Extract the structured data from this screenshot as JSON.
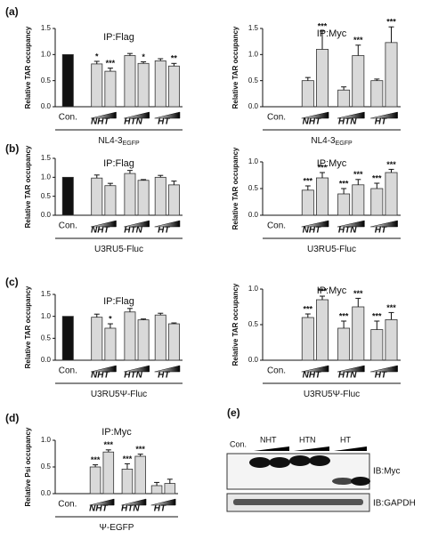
{
  "chart_data": [
    {
      "type": "bar",
      "panel": "(a)",
      "title": "IP:Flag",
      "ylabel": "Relative TAR occupancy",
      "xlabel": "NL4-3",
      "xlabel_sub": "EGFP",
      "ylim": [
        0,
        1.5
      ],
      "yticks": [
        {
          "value": 0,
          "label": "0.0"
        },
        0.5,
        {
          "value": 1,
          "label": "1.0"
        },
        {
          "value": 1.5,
          "label": "1.5"
        }
      ],
      "con_color": "#111111",
      "color": "#d9d9d9",
      "groups": [
        {
          "label": "Con.",
          "values": [
            1.0
          ],
          "errors": [
            null
          ],
          "annotations": [
            null
          ]
        },
        {
          "label": "NHT",
          "values": [
            0.82,
            0.68
          ],
          "errors": [
            0.05,
            0.06
          ],
          "annotations": [
            "*",
            "***"
          ]
        },
        {
          "label": "HTN",
          "values": [
            0.98,
            0.83
          ],
          "errors": [
            0.04,
            0.03
          ],
          "annotations": [
            null,
            "*"
          ]
        },
        {
          "label": "HT",
          "values": [
            0.88,
            0.78
          ],
          "errors": [
            0.04,
            0.05
          ],
          "annotations": [
            null,
            "**"
          ]
        }
      ]
    },
    {
      "type": "bar",
      "title": "IP:Myc",
      "ylabel": "Relative TAR occupancy",
      "xlabel": "NL4-3",
      "xlabel_sub": "EGFP",
      "ylim": [
        0,
        1.5
      ],
      "yticks": [
        {
          "value": 0,
          "label": "0.0"
        },
        0.5,
        {
          "value": 1,
          "label": "1.0"
        },
        {
          "value": 1.5,
          "label": "1.5"
        }
      ],
      "con_color": "#111111",
      "color": "#d9d9d9",
      "groups": [
        {
          "label": "Con.",
          "values": [
            null
          ],
          "errors": [
            null
          ],
          "annotations": [
            null
          ]
        },
        {
          "label": "NHT",
          "values": [
            0.5,
            1.1
          ],
          "errors": [
            0.06,
            0.35
          ],
          "annotations": [
            null,
            "***"
          ]
        },
        {
          "label": "HTN",
          "values": [
            0.32,
            0.98
          ],
          "errors": [
            0.06,
            0.2
          ],
          "annotations": [
            null,
            "***"
          ]
        },
        {
          "label": "HT",
          "values": [
            0.5,
            1.23
          ],
          "errors": [
            0.03,
            0.3
          ],
          "annotations": [
            null,
            "***"
          ]
        }
      ]
    },
    {
      "type": "bar",
      "panel": "(b)",
      "title": "IP:Flag",
      "ylabel": "Relative TAR occupancy",
      "xlabel": "U3RU5-Fluc",
      "ylim": [
        0,
        1.5
      ],
      "yticks": [
        {
          "value": 0,
          "label": "0.0"
        },
        0.5,
        {
          "value": 1,
          "label": "1.0"
        },
        {
          "value": 1.5,
          "label": "1.5"
        }
      ],
      "con_color": "#111111",
      "color": "#d9d9d9",
      "groups": [
        {
          "label": "Con.",
          "values": [
            1.0
          ],
          "errors": [
            null
          ],
          "annotations": [
            null
          ]
        },
        {
          "label": "NHT",
          "values": [
            0.98,
            0.78
          ],
          "errors": [
            0.08,
            0.06
          ],
          "annotations": [
            null,
            null
          ]
        },
        {
          "label": "HTN",
          "values": [
            1.1,
            0.92
          ],
          "errors": [
            0.08,
            0.02
          ],
          "annotations": [
            null,
            null
          ]
        },
        {
          "label": "HT",
          "values": [
            1.0,
            0.8
          ],
          "errors": [
            0.05,
            0.1
          ],
          "annotations": [
            null,
            null
          ]
        }
      ]
    },
    {
      "type": "bar",
      "title": "IP:Myc",
      "ylabel": "Relative TAR occupancy",
      "xlabel": "U3RU5-Fluc",
      "ylim": [
        0,
        1.0
      ],
      "yticks": [
        {
          "value": 0,
          "label": "0.0"
        },
        0.5,
        {
          "value": 1,
          "label": "1.0"
        }
      ],
      "con_color": "#111111",
      "color": "#d9d9d9",
      "groups": [
        {
          "label": "Con.",
          "values": [
            null
          ],
          "errors": [
            null
          ],
          "annotations": [
            null
          ]
        },
        {
          "label": "NHT",
          "values": [
            0.47,
            0.7
          ],
          "errors": [
            0.08,
            0.1
          ],
          "annotations": [
            "***",
            "***"
          ]
        },
        {
          "label": "HTN",
          "values": [
            0.4,
            0.57
          ],
          "errors": [
            0.1,
            0.1
          ],
          "annotations": [
            "***",
            "***"
          ]
        },
        {
          "label": "HT",
          "values": [
            0.5,
            0.8
          ],
          "errors": [
            0.1,
            0.06
          ],
          "annotations": [
            "***",
            "***"
          ]
        }
      ]
    },
    {
      "type": "bar",
      "panel": "(c)",
      "title": "IP:Flag",
      "ylabel": "Relative TAR occupancy",
      "xlabel": "U3RU5Ψ-Fluc",
      "ylim": [
        0,
        1.5
      ],
      "yticks": [
        {
          "value": 0,
          "label": "0.0"
        },
        0.5,
        {
          "value": 1,
          "label": "1.0"
        },
        {
          "value": 1.5,
          "label": "1.5"
        }
      ],
      "con_color": "#111111",
      "color": "#d9d9d9",
      "groups": [
        {
          "label": "Con.",
          "values": [
            1.0
          ],
          "errors": [
            null
          ],
          "annotations": [
            null
          ]
        },
        {
          "label": "NHT",
          "values": [
            0.98,
            0.73
          ],
          "errors": [
            0.07,
            0.1
          ],
          "annotations": [
            null,
            "*"
          ]
        },
        {
          "label": "HTN",
          "values": [
            1.1,
            0.92
          ],
          "errors": [
            0.08,
            0.02
          ],
          "annotations": [
            null,
            null
          ]
        },
        {
          "label": "HT",
          "values": [
            1.03,
            0.83
          ],
          "errors": [
            0.04,
            0.02
          ],
          "annotations": [
            null,
            null
          ]
        }
      ]
    },
    {
      "type": "bar",
      "title": "IP:Myc",
      "ylabel": "Relative TAR occupancy",
      "xlabel": "U3RU5Ψ-Fluc",
      "ylim": [
        0,
        1.0
      ],
      "yticks": [
        {
          "value": 0,
          "label": "0.0"
        },
        0.5,
        {
          "value": 1,
          "label": "1.0"
        }
      ],
      "con_color": "#111111",
      "color": "#d9d9d9",
      "groups": [
        {
          "label": "Con.",
          "values": [
            null
          ],
          "errors": [
            null
          ],
          "annotations": [
            null
          ]
        },
        {
          "label": "NHT",
          "values": [
            0.6,
            0.85
          ],
          "errors": [
            0.05,
            0.05
          ],
          "annotations": [
            "***",
            "***"
          ]
        },
        {
          "label": "HTN",
          "values": [
            0.45,
            0.75
          ],
          "errors": [
            0.1,
            0.12
          ],
          "annotations": [
            "***",
            "***"
          ]
        },
        {
          "label": "HT",
          "values": [
            0.43,
            0.57
          ],
          "errors": [
            0.12,
            0.1
          ],
          "annotations": [
            "***",
            "***"
          ]
        }
      ]
    },
    {
      "type": "bar",
      "panel": "(d)",
      "title": "IP:Myc",
      "ylabel": "Relative Psi occupancy",
      "xlabel": "Ψ-EGFP",
      "ylim": [
        0,
        1.0
      ],
      "yticks": [
        {
          "value": 0,
          "label": "0.0"
        },
        0.5,
        {
          "value": 1,
          "label": "1.0"
        }
      ],
      "con_color": "#111111",
      "color": "#d9d9d9",
      "groups": [
        {
          "label": "Con.",
          "values": [
            null
          ],
          "errors": [
            null
          ],
          "annotations": [
            null
          ]
        },
        {
          "label": "NHT",
          "values": [
            0.5,
            0.78
          ],
          "errors": [
            0.04,
            0.04
          ],
          "annotations": [
            "***",
            "***"
          ]
        },
        {
          "label": "HTN",
          "values": [
            0.46,
            0.7
          ],
          "errors": [
            0.1,
            0.04
          ],
          "annotations": [
            "***",
            "***"
          ]
        },
        {
          "label": "HT",
          "values": [
            0.15,
            0.19
          ],
          "errors": [
            0.06,
            0.08
          ],
          "annotations": [
            null,
            null
          ]
        }
      ]
    }
  ],
  "blot": {
    "panel": "(e)",
    "lanes": [
      "Con.",
      "NHT",
      "HTN",
      "HT"
    ],
    "rows": [
      "IB:Myc",
      "IB:GAPDH"
    ]
  }
}
